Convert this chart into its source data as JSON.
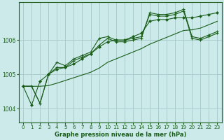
{
  "title": "Graphe pression niveau de la mer (hPa)",
  "background_color": "#cceaea",
  "grid_color": "#aacccc",
  "line_color": "#1a5e1a",
  "xlim": [
    -0.5,
    23.5
  ],
  "ylim": [
    1003.6,
    1007.1
  ],
  "yticks": [
    1004,
    1005,
    1006
  ],
  "xticks": [
    0,
    1,
    2,
    3,
    4,
    5,
    6,
    7,
    8,
    9,
    10,
    11,
    12,
    13,
    14,
    15,
    16,
    17,
    18,
    19,
    20,
    21,
    22,
    23
  ],
  "series": {
    "jagged1": [
      1004.65,
      1004.65,
      1004.15,
      1005.0,
      1005.35,
      1005.25,
      1005.45,
      1005.55,
      1005.65,
      1006.05,
      1006.1,
      1006.0,
      1006.0,
      1006.05,
      1006.1,
      1006.75,
      1006.7,
      1006.7,
      1006.75,
      1006.85,
      1006.05,
      1006.0,
      1006.1,
      1006.2
    ],
    "jagged2": [
      1004.65,
      1004.65,
      1004.15,
      1005.0,
      1005.2,
      1005.2,
      1005.4,
      1005.5,
      1005.6,
      1005.85,
      1006.05,
      1005.95,
      1005.95,
      1006.0,
      1006.05,
      1006.8,
      1006.75,
      1006.75,
      1006.8,
      1006.9,
      1006.1,
      1006.05,
      1006.15,
      1006.25
    ],
    "smooth": [
      1004.65,
      1004.1,
      1004.8,
      1005.0,
      1005.15,
      1005.2,
      1005.3,
      1005.45,
      1005.6,
      1005.8,
      1005.95,
      1006.0,
      1006.0,
      1006.1,
      1006.2,
      1006.55,
      1006.6,
      1006.6,
      1006.65,
      1006.65,
      1006.65,
      1006.7,
      1006.75,
      1006.8
    ],
    "linear": [
      1004.65,
      1004.65,
      1004.65,
      1004.67,
      1004.74,
      1004.82,
      1004.9,
      1004.98,
      1005.06,
      1005.18,
      1005.35,
      1005.45,
      1005.55,
      1005.65,
      1005.75,
      1005.88,
      1005.98,
      1006.08,
      1006.18,
      1006.28,
      1006.3,
      1006.35,
      1006.45,
      1006.55
    ]
  }
}
